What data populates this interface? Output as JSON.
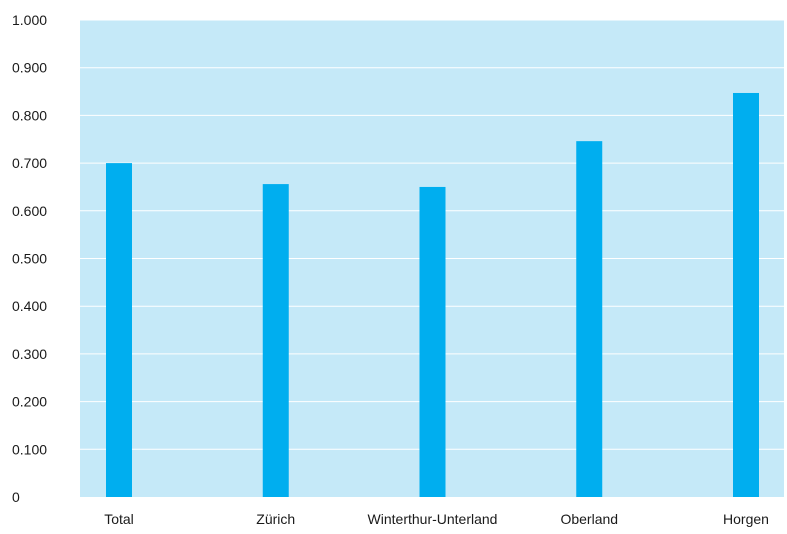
{
  "chart_data": {
    "type": "bar",
    "title": "",
    "xlabel": "",
    "ylabel": "",
    "categories": [
      "Total",
      "Zürich",
      "Winterthur-Unterland",
      "Oberland",
      "Horgen"
    ],
    "values": [
      0.7,
      0.656,
      0.65,
      0.746,
      0.847
    ],
    "ylim": [
      0,
      1.0
    ],
    "yticks": [
      "0",
      "0.100",
      "0.200",
      "0.300",
      "0.400",
      "0.500",
      "0.600",
      "0.700",
      "0.800",
      "0.900",
      "1.000"
    ],
    "grid": true,
    "legend": "none",
    "colors": {
      "bar": "#00aeef",
      "plot_background": "#c5e9f8",
      "gridline": "#ffffff",
      "text": "#1a1a1a"
    }
  }
}
